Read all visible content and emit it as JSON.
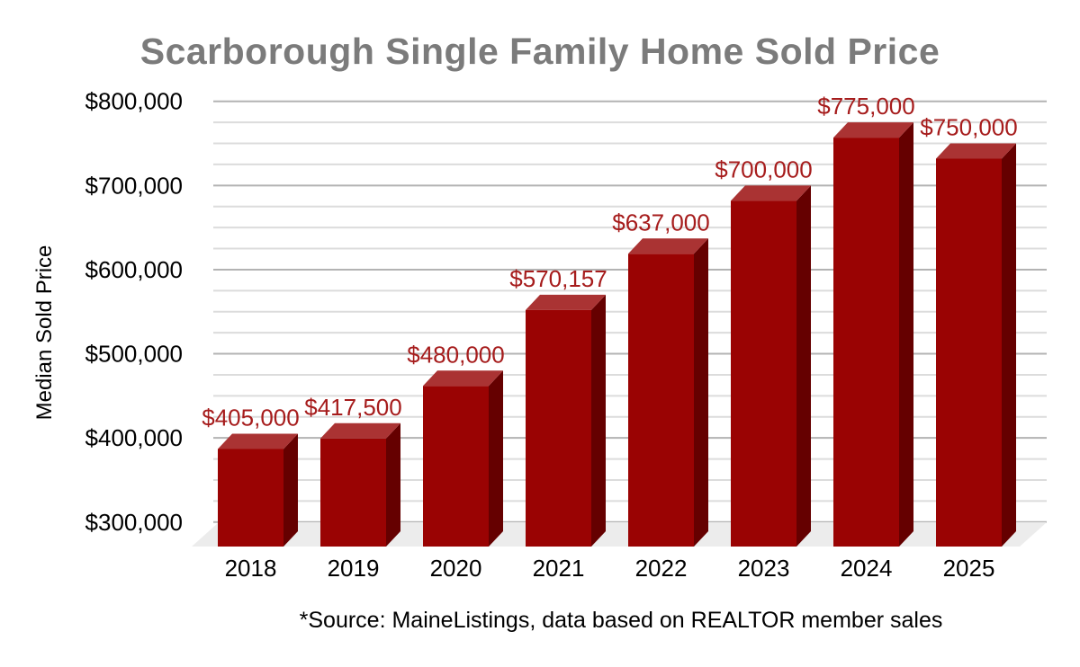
{
  "chart_data": {
    "type": "bar",
    "style": "3d-column",
    "title": "Scarborough Single Family Home Sold Price",
    "ylabel": "Median Sold Price",
    "xlabel": "",
    "categories": [
      "2018",
      "2019",
      "2020",
      "2021",
      "2022",
      "2023",
      "2024",
      "2025"
    ],
    "values": [
      405000,
      417500,
      480000,
      570157,
      637000,
      700000,
      775000,
      750000
    ],
    "data_labels": [
      "$405,000",
      "$417,500",
      "$480,000",
      "$570,157",
      "$637,000",
      "$700,000",
      "$775,000",
      "$750,000"
    ],
    "ylim": [
      300000,
      800000
    ],
    "ytick_step": 100000,
    "ytick_labels": [
      "$300,000",
      "$400,000",
      "$500,000",
      "$600,000",
      "$700,000",
      "$800,000"
    ],
    "minor_gridline_step": 25000,
    "grid": "horizontal, minor every $25,000, major every $100,000",
    "legend_position": "none",
    "source_note": "*Source: MaineListings, data based on REALTOR member sales",
    "colors": {
      "bar_front": "#9a0303",
      "bar_top": "#aa3333",
      "bar_side": "#650000",
      "data_label": "#a61c1c",
      "title": "#7b7b7b",
      "grid_major": "#b3b3b3",
      "grid_minor": "#dcdcdc",
      "floor": "#ececec",
      "axis_text": "#000000"
    }
  }
}
